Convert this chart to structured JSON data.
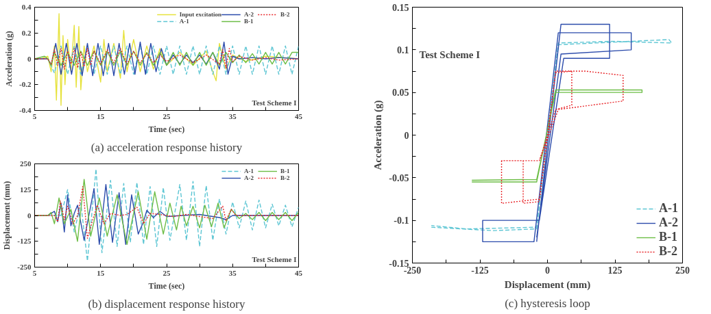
{
  "chart_data": [
    {
      "type": "line",
      "xlabel": "Time (sec)",
      "ylabel": "Acceleration (g)",
      "xlim": [
        5,
        45
      ],
      "ylim": [
        -0.4,
        0.4
      ],
      "xticks": [
        5,
        {
          "value": 10,
          "label": null
        },
        15,
        {
          "value": 20,
          "label": null
        },
        25,
        {
          "value": 30,
          "label": null
        },
        35,
        {
          "value": 40,
          "label": null
        },
        45
      ],
      "yticks": [
        -0.4,
        {
          "value": -0.3,
          "label": null
        },
        -0.2,
        {
          "value": -0.1,
          "label": null
        },
        0,
        {
          "value": 0.1,
          "label": null
        },
        0.2,
        {
          "value": 0.3,
          "label": null
        },
        0.4
      ],
      "grid": false,
      "legend": "top right",
      "marker": "none",
      "annotations": [
        "Test Scheme I",
        "(a) acceleration response history"
      ],
      "series": [
        {
          "name": "Input excitation",
          "color": "#e6e23c",
          "line_style": "solid",
          "x": [
            5,
            6,
            7,
            7.5,
            8,
            8.3,
            8.7,
            9,
            9.3,
            9.6,
            10,
            10.5,
            11,
            11.3,
            11.7,
            12,
            12.5,
            13,
            14,
            15,
            15.5,
            16,
            17,
            18,
            18.5,
            19,
            20,
            21,
            22,
            23,
            24,
            25,
            27,
            29,
            31,
            32,
            32.5,
            33,
            34,
            35,
            37,
            40,
            45
          ],
          "values": [
            0,
            0,
            0.02,
            -0.1,
            0.1,
            -0.32,
            0.35,
            -0.36,
            0.18,
            -0.2,
            0.15,
            -0.1,
            0.26,
            -0.22,
            0.25,
            -0.24,
            0.1,
            -0.1,
            0.1,
            -0.18,
            0.15,
            -0.1,
            0.12,
            -0.15,
            0.22,
            -0.1,
            0.15,
            -0.1,
            0.1,
            -0.08,
            0.08,
            -0.05,
            0.05,
            -0.05,
            0.06,
            -0.1,
            -0.17,
            0.12,
            -0.08,
            0.03,
            -0.02,
            0.02,
            0
          ]
        },
        {
          "name": "A-1",
          "color": "#5bc5d3",
          "line_style": "dashed",
          "x": [
            5,
            7,
            8,
            9,
            10,
            11,
            12,
            13,
            14,
            15,
            16,
            17,
            18,
            19,
            20,
            21,
            22,
            23,
            24,
            25,
            26,
            27,
            28,
            29,
            30,
            31,
            32,
            33,
            34,
            35,
            36,
            37,
            38,
            39,
            40,
            41,
            42,
            43,
            44,
            45
          ],
          "values": [
            0,
            0,
            -0.11,
            0.1,
            -0.12,
            0.1,
            -0.12,
            0.1,
            -0.12,
            0.1,
            -0.12,
            0.1,
            -0.12,
            0.1,
            -0.12,
            0.1,
            -0.12,
            0.1,
            -0.12,
            0.1,
            -0.12,
            0.1,
            -0.12,
            0.1,
            -0.12,
            0.1,
            -0.12,
            0.1,
            -0.12,
            0.1,
            -0.12,
            0.1,
            -0.12,
            0.1,
            -0.12,
            0.1,
            -0.12,
            0.1,
            -0.12,
            0.1
          ]
        },
        {
          "name": "A-2",
          "color": "#2b4bab",
          "line_style": "solid",
          "x": [
            5,
            7,
            7.5,
            8.2,
            9,
            9.8,
            10.6,
            11.4,
            12.2,
            13,
            13.8,
            14.6,
            15.4,
            16.2,
            17,
            17.8,
            18.6,
            19.4,
            20.2,
            21,
            21.8,
            22.6,
            23.4,
            24.2,
            25,
            26,
            27,
            28,
            29,
            30,
            31,
            32,
            33,
            33.7,
            34.3,
            35,
            36,
            38,
            40,
            42,
            45
          ],
          "values": [
            0,
            0,
            -0.05,
            0.12,
            -0.12,
            0.12,
            -0.12,
            0.12,
            -0.13,
            0.12,
            -0.13,
            0.12,
            -0.13,
            0.12,
            -0.13,
            0.12,
            -0.12,
            0.12,
            -0.12,
            0.13,
            -0.12,
            0.12,
            -0.1,
            0.08,
            -0.05,
            0.03,
            -0.04,
            0.03,
            -0.03,
            0.03,
            -0.04,
            0.05,
            -0.08,
            0.13,
            -0.12,
            0.02,
            0,
            0.01,
            0,
            0.01,
            0
          ]
        },
        {
          "name": "B-1",
          "color": "#6cbd45",
          "line_style": "solid",
          "x": [
            5,
            6.5,
            7,
            7.5,
            8,
            9,
            10,
            11,
            12,
            13,
            14,
            15,
            16,
            17,
            18,
            19,
            20,
            21,
            22,
            23,
            24,
            25,
            26,
            27,
            28,
            29,
            30,
            31,
            32,
            33,
            34,
            35,
            36,
            37,
            38,
            39,
            40,
            41,
            42,
            43,
            44,
            45
          ],
          "values": [
            0,
            0.02,
            0,
            -0.05,
            0.05,
            -0.05,
            0.05,
            -0.05,
            0.06,
            -0.05,
            0.06,
            -0.05,
            0.06,
            -0.05,
            0.06,
            -0.05,
            0.06,
            -0.05,
            0.05,
            -0.05,
            0.05,
            -0.05,
            0.05,
            -0.05,
            0.05,
            -0.05,
            0.05,
            -0.05,
            0.05,
            -0.05,
            0.05,
            -0.03,
            0.03,
            -0.03,
            0.04,
            -0.04,
            0.05,
            -0.04,
            0.05,
            -0.04,
            0.05,
            0.05
          ]
        },
        {
          "name": "B-2",
          "color": "#e8262a",
          "line_style": "dotted",
          "x": [
            5,
            7,
            7.5,
            8,
            8.5,
            9,
            9.5,
            10,
            10.5,
            11,
            11.5,
            12,
            12.5,
            13,
            13.5,
            14,
            15,
            16,
            17,
            18,
            19,
            20,
            21,
            22,
            23,
            24,
            25,
            27,
            29,
            31,
            33,
            33.5,
            34,
            34.5,
            35,
            36,
            38,
            40,
            42,
            45
          ],
          "values": [
            0,
            0,
            -0.04,
            0.07,
            -0.05,
            0.08,
            -0.08,
            0.06,
            -0.04,
            0.08,
            -0.07,
            0.05,
            -0.06,
            0.08,
            -0.05,
            0.06,
            -0.04,
            0.07,
            -0.03,
            0.08,
            -0.04,
            0.06,
            -0.03,
            0.04,
            -0.03,
            0.03,
            -0.02,
            0.03,
            -0.03,
            0.03,
            -0.04,
            0.07,
            -0.07,
            0.08,
            -0.02,
            0.02,
            -0.01,
            0.01,
            -0.01,
            0
          ]
        }
      ]
    },
    {
      "type": "line",
      "xlabel": "Time (sec)",
      "ylabel": "Displacement (mm)",
      "xlim": [
        5,
        45
      ],
      "ylim": [
        -250,
        250
      ],
      "xticks": [
        5,
        {
          "value": 10,
          "label": null
        },
        15,
        {
          "value": 20,
          "label": null
        },
        25,
        {
          "value": 30,
          "label": null
        },
        35,
        {
          "value": 40,
          "label": null
        },
        45
      ],
      "yticks": [
        -250,
        {
          "value": -187.5,
          "label": null
        },
        -125,
        {
          "value": -62.5,
          "label": null
        },
        0,
        {
          "value": 62.5,
          "label": null
        },
        125,
        {
          "value": 187.5,
          "label": null
        },
        250
      ],
      "grid": false,
      "legend": "top right",
      "marker": "none",
      "annotations": [
        "Test Scheme I",
        "(b) displacement response history"
      ],
      "series": [
        {
          "name": "A-1",
          "color": "#5bc5d3",
          "line_style": "dashed",
          "x": [
            5,
            7,
            9,
            10,
            11,
            12,
            13,
            14.3,
            15.2,
            16.5,
            17.5,
            18.5,
            19.5,
            20.5,
            21.5,
            22.5,
            23.5,
            24.5,
            25.5,
            27,
            28,
            29,
            30,
            31,
            32,
            33,
            34,
            35,
            36,
            37,
            38,
            39,
            40,
            41,
            42,
            43,
            44,
            45
          ],
          "values": [
            0,
            0,
            0,
            125,
            -80,
            60,
            -220,
            225,
            -180,
            170,
            -150,
            155,
            -130,
            160,
            -140,
            140,
            -150,
            135,
            -120,
            150,
            -120,
            165,
            -150,
            145,
            -120,
            80,
            -90,
            65,
            -60,
            70,
            -70,
            75,
            -60,
            55,
            -50,
            50,
            -55,
            40
          ]
        },
        {
          "name": "A-2",
          "color": "#2b4bab",
          "line_style": "solid",
          "x": [
            5,
            7,
            8,
            8.5,
            9,
            9.5,
            10,
            10.5,
            11,
            11.5,
            12.5,
            14,
            14.8,
            15.8,
            16.8,
            17.8,
            18.8,
            19.7,
            20.7,
            21.5,
            22,
            23,
            24,
            25,
            30,
            33,
            34,
            35,
            45
          ],
          "values": [
            0,
            0,
            20,
            -30,
            60,
            -80,
            100,
            -50,
            10,
            50,
            -120,
            130,
            -140,
            150,
            -130,
            110,
            -140,
            100,
            -90,
            -30,
            25,
            -10,
            20,
            -5,
            5,
            -10,
            -20,
            0,
            0
          ]
        },
        {
          "name": "B-1",
          "color": "#6cbd45",
          "line_style": "solid",
          "x": [
            5,
            7,
            7.5,
            8,
            8.7,
            9.5,
            10.5,
            11.5,
            12.5,
            13.5,
            14.8,
            16,
            17.5,
            19,
            20.7,
            22,
            23.2,
            24.5,
            25.5,
            26.5,
            27.2,
            28,
            29,
            30,
            30.8,
            31.8,
            32.8,
            33.7,
            34.8,
            36,
            37,
            38,
            39,
            40,
            41,
            42,
            43,
            44,
            45
          ],
          "values": [
            0,
            0,
            15,
            -40,
            85,
            -40,
            30,
            -125,
            175,
            -100,
            85,
            -100,
            100,
            -140,
            115,
            -115,
            115,
            -90,
            60,
            -70,
            45,
            -50,
            45,
            -60,
            50,
            -55,
            60,
            -60,
            30,
            -15,
            10,
            -20,
            15,
            -25,
            15,
            -20,
            15,
            -25,
            15
          ]
        },
        {
          "name": "B-2",
          "color": "#e8262a",
          "line_style": "dotted",
          "x": [
            5,
            8,
            8.5,
            8.9,
            9.5,
            10,
            10.8,
            11.5,
            12.3,
            13,
            14,
            14.5,
            15.5,
            16.5,
            18,
            19,
            20.5,
            21.5,
            22.5,
            24,
            26,
            28,
            30,
            32,
            33.5,
            34,
            34.8,
            35.5,
            45
          ],
          "values": [
            0,
            0,
            -30,
            70,
            -20,
            45,
            -40,
            0,
            140,
            -110,
            0,
            50,
            -40,
            10,
            0,
            5,
            40,
            -40,
            10,
            5,
            -5,
            5,
            -5,
            -15,
            45,
            -25,
            30,
            0,
            0
          ]
        }
      ]
    },
    {
      "type": "line",
      "xlabel": "Displacement (mm)",
      "ylabel": "Acceleration (g)",
      "xlim": [
        -250,
        250
      ],
      "ylim": [
        -0.15,
        0.15
      ],
      "xticks": [
        -250,
        {
          "value": -187.5,
          "label": null
        },
        -125,
        {
          "value": -62.5,
          "label": null
        },
        0,
        {
          "value": 62.5,
          "label": null
        },
        125,
        {
          "value": 187.5,
          "label": null
        },
        250
      ],
      "yticks": [
        -0.15,
        {
          "value": -0.125,
          "label": null
        },
        -0.1,
        {
          "value": -0.075,
          "label": null
        },
        -0.05,
        {
          "value": -0.025,
          "label": null
        },
        0,
        {
          "value": 0.025,
          "label": null
        },
        0.05,
        {
          "value": 0.075,
          "label": null
        },
        0.1,
        {
          "value": 0.125,
          "label": null
        },
        0.15
      ],
      "grid": false,
      "legend": "bottom right",
      "marker": "none",
      "annotations": [
        "Test Scheme I",
        "(c) hysteresis loop"
      ],
      "series": [
        {
          "name": "A-1",
          "color": "#5bc5d3",
          "line_style": "dashed",
          "x": [
            -215,
            -100,
            -20,
            20,
            120,
            230,
            225,
            20,
            -20,
            -150,
            -215
          ],
          "values": [
            -0.108,
            -0.112,
            -0.11,
            0.108,
            0.11,
            0.108,
            0.112,
            0.106,
            -0.108,
            -0.11,
            -0.106
          ]
        },
        {
          "name": "A-2",
          "color": "#2b4bab",
          "line_style": "solid",
          "x": [
            -20,
            25,
            115,
            115,
            30,
            -15,
            -120,
            -120,
            -25,
            20,
            155,
            155,
            25,
            -20
          ],
          "values": [
            -0.125,
            0.13,
            0.13,
            0.09,
            0.09,
            -0.1,
            -0.1,
            -0.125,
            -0.125,
            0.12,
            0.12,
            0.1,
            0.095,
            -0.12
          ]
        },
        {
          "name": "B-1",
          "color": "#6cbd45",
          "line_style": "solid",
          "x": [
            -140,
            -20,
            15,
            175,
            175,
            15,
            -20,
            -140
          ],
          "values": [
            -0.055,
            -0.055,
            0.053,
            0.053,
            0.05,
            0.05,
            -0.052,
            -0.053
          ]
        },
        {
          "name": "B-2",
          "color": "#e8262a",
          "line_style": "dotted",
          "x": [
            -85,
            -85,
            -15,
            15,
            70,
            140,
            140,
            20,
            -15,
            -85,
            -45,
            -45,
            -15,
            15,
            45,
            45,
            15,
            -15
          ],
          "values": [
            -0.03,
            -0.08,
            -0.075,
            0.075,
            0.075,
            0.07,
            0.04,
            0.03,
            -0.03,
            -0.03,
            -0.03,
            -0.08,
            -0.078,
            0.073,
            0.075,
            0.035,
            0.03,
            -0.03
          ]
        }
      ]
    }
  ]
}
